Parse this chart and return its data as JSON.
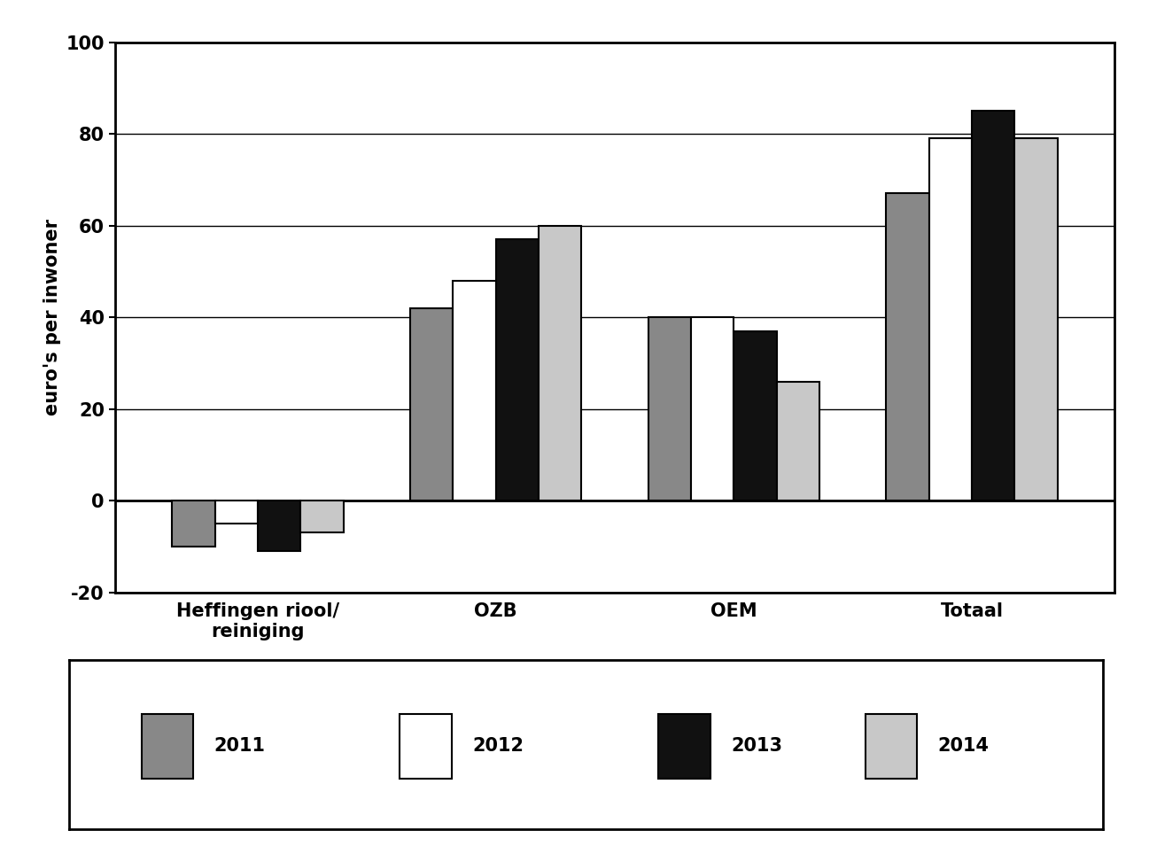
{
  "categories": [
    "Heffingen riool/\nreiniging",
    "OZB",
    "OEM",
    "Totaal"
  ],
  "years": [
    "2011",
    "2012",
    "2013",
    "2014"
  ],
  "values": {
    "Heffingen riool/\nreiniging": [
      -10,
      -5,
      -11,
      -7
    ],
    "OZB": [
      42,
      48,
      57,
      60
    ],
    "OEM": [
      40,
      40,
      37,
      26
    ],
    "Totaal": [
      67,
      79,
      85,
      79
    ]
  },
  "colors": {
    "2011": "#888888",
    "2012": "#ffffff",
    "2013": "#111111",
    "2014": "#c8c8c8"
  },
  "bar_edge_color": "#000000",
  "bar_edge_width": 1.5,
  "ylabel": "euro's per inwoner",
  "ylim": [
    -20,
    100
  ],
  "yticks": [
    -20,
    0,
    20,
    40,
    60,
    80,
    100
  ],
  "background_color": "#ffffff",
  "group_width": 0.72,
  "figure_width": 12.97,
  "figure_height": 9.55,
  "dpi": 100
}
